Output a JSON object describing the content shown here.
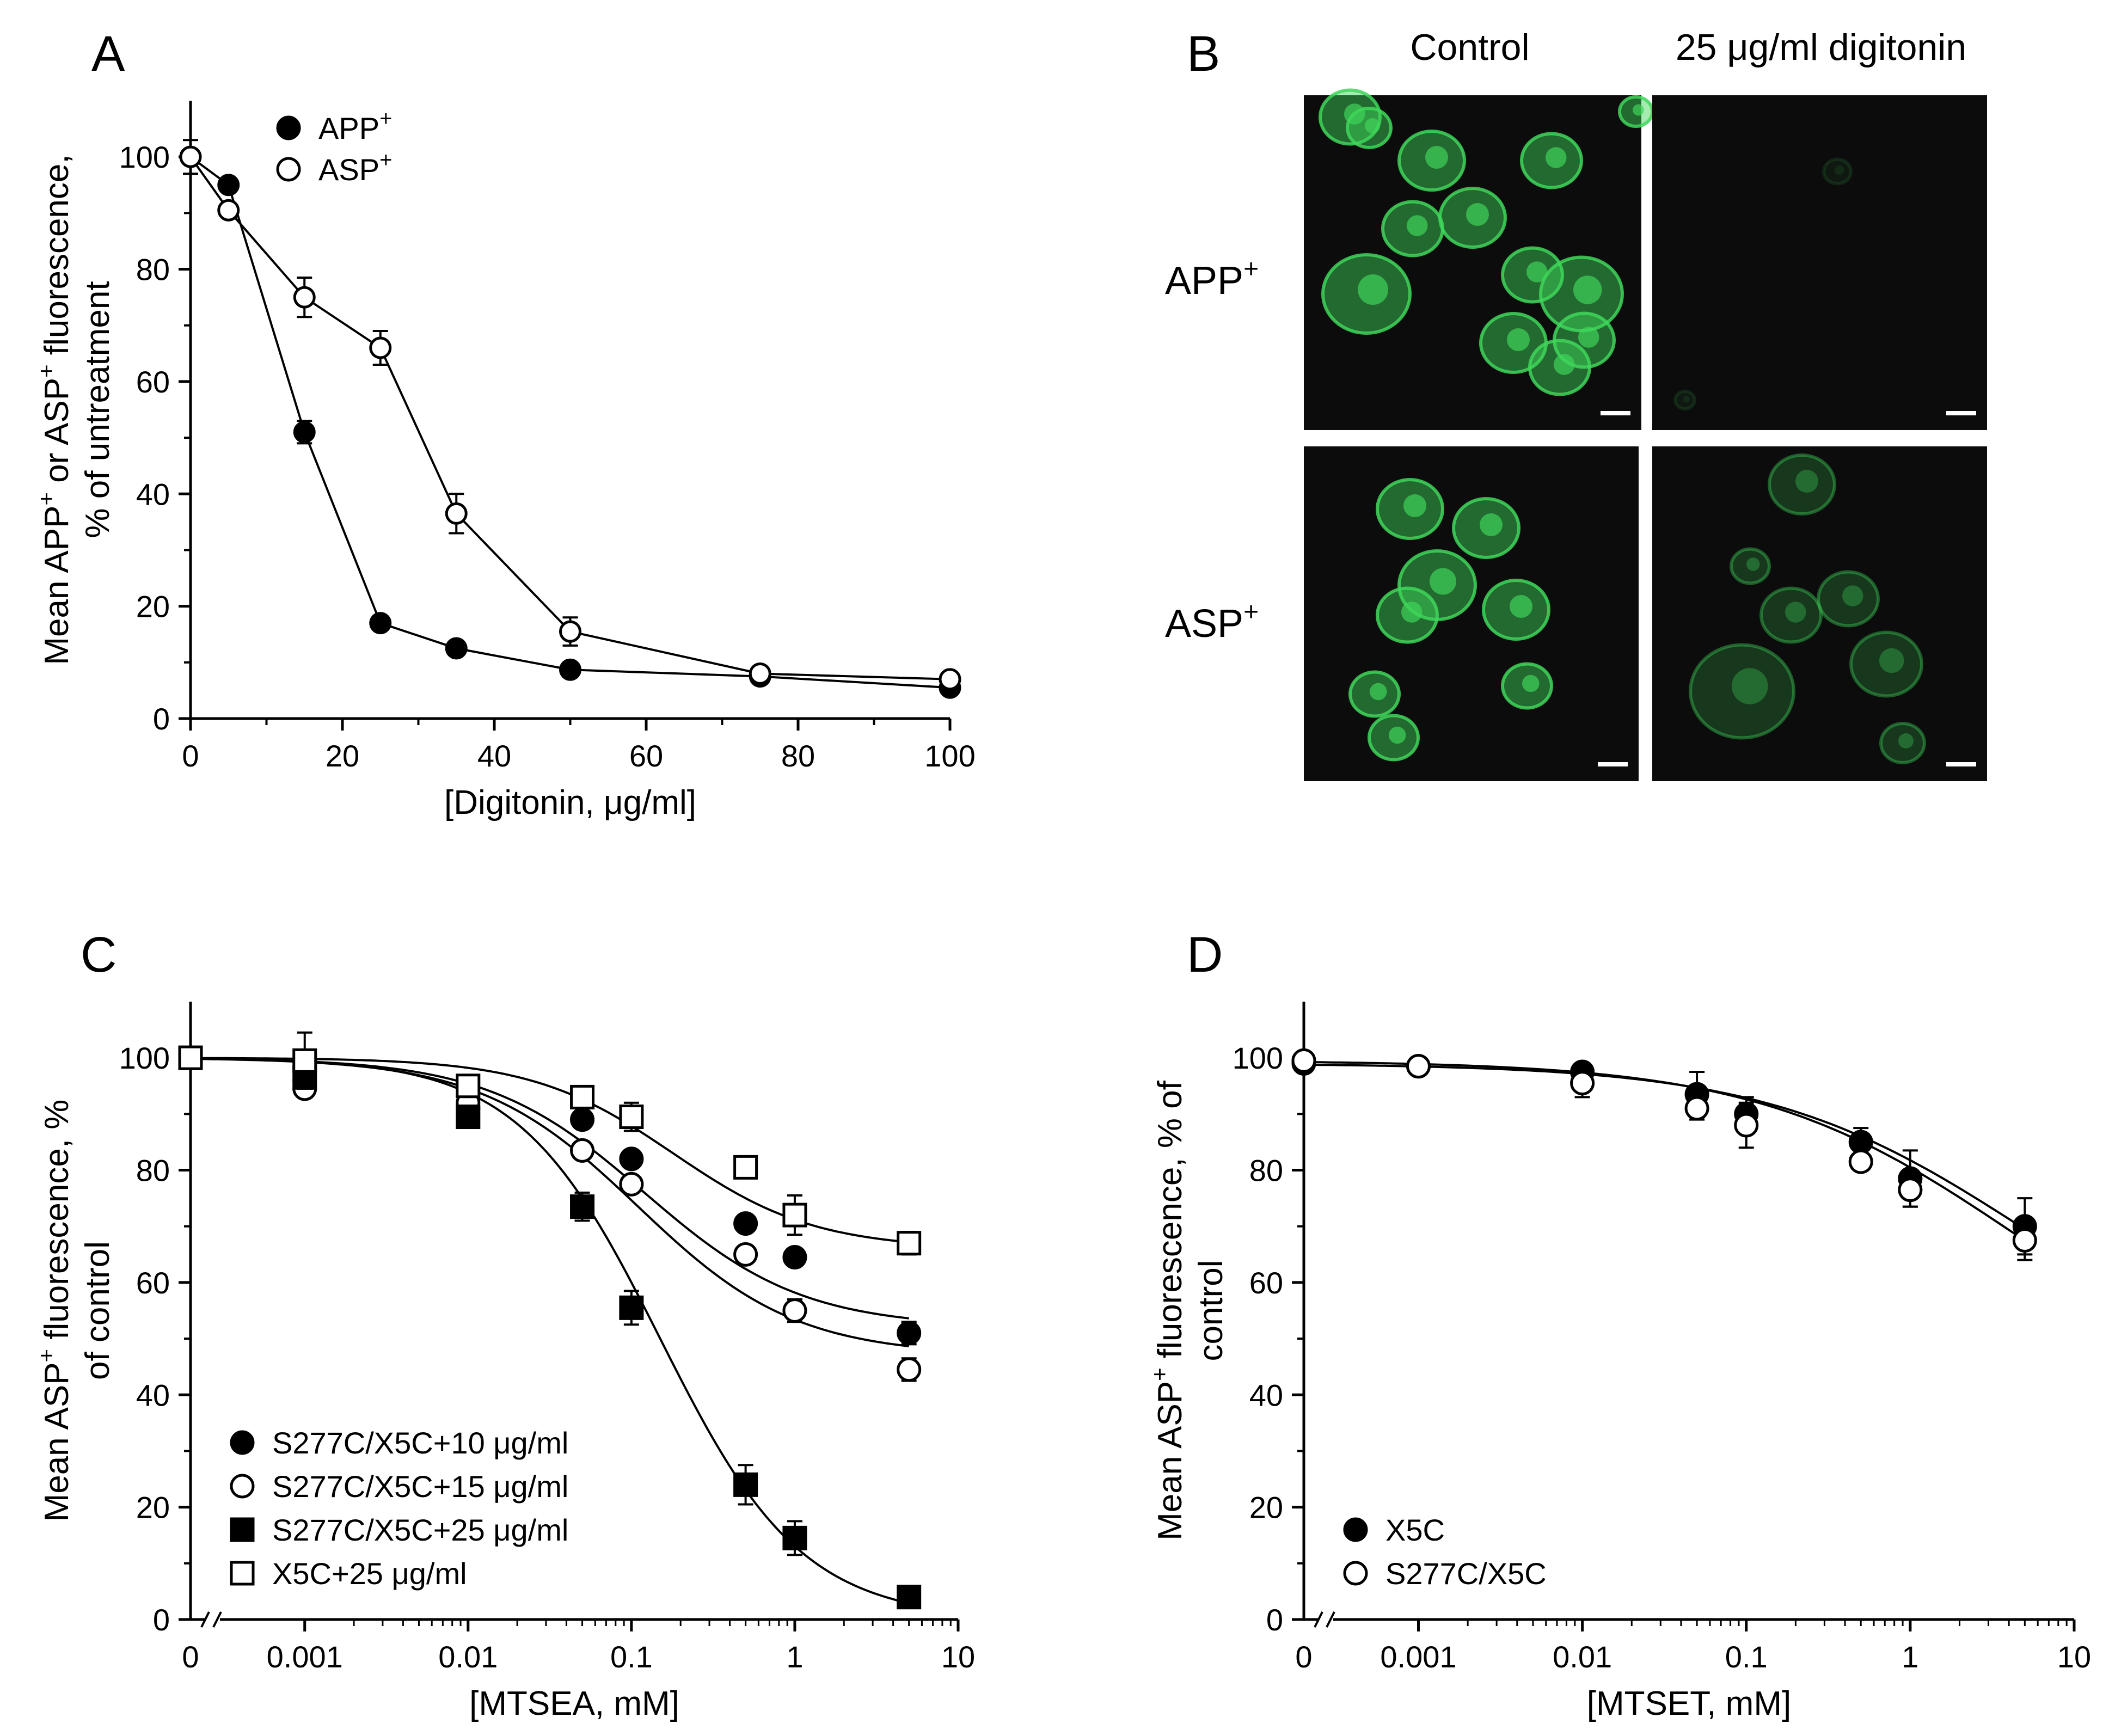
{
  "panels": {
    "A": {
      "letter": "A"
    },
    "B": {
      "letter": "B"
    },
    "C": {
      "letter": "C"
    },
    "D": {
      "letter": "D"
    }
  },
  "micrographs": {
    "column_headers": [
      "Control",
      "25 μg/ml digitonin"
    ],
    "row_labels": [
      {
        "base": "APP",
        "sup": "+"
      },
      {
        "base": "ASP",
        "sup": "+"
      }
    ],
    "colors": {
      "background": "#0c0c0c",
      "cells": "#3fd65a"
    }
  },
  "chart_data": [
    {
      "id": "A",
      "type": "line",
      "xlabel": "[Digitonin, μg/ml]",
      "ylabel_line1_parts": [
        "Mean APP",
        "+",
        " or ASP",
        "+",
        " fluorescence,"
      ],
      "ylabel_line2": "% of  untreatment",
      "xlim": [
        0,
        100
      ],
      "ylim": [
        0,
        110
      ],
      "xticks": [
        0,
        20,
        40,
        60,
        80,
        100
      ],
      "yticks": [
        0,
        20,
        40,
        60,
        80,
        100
      ],
      "legend_position": "top-left",
      "series": [
        {
          "name": "APP",
          "name_sup": "+",
          "marker": "circle-filled",
          "x": [
            0,
            5,
            15,
            25,
            35,
            50,
            75,
            100
          ],
          "y": [
            100,
            95,
            51,
            17,
            12.5,
            8.7,
            7.5,
            5.5
          ],
          "err": [
            0,
            1,
            2,
            1,
            1,
            1,
            1,
            1
          ]
        },
        {
          "name": "ASP",
          "name_sup": "+",
          "marker": "circle-open",
          "x": [
            0,
            5,
            15,
            25,
            35,
            50,
            75,
            100
          ],
          "y": [
            100,
            90.5,
            75,
            66,
            36.5,
            15.5,
            8,
            7
          ],
          "err": [
            3,
            1,
            3.5,
            3,
            3.5,
            2.5,
            1,
            1
          ]
        }
      ]
    },
    {
      "id": "C",
      "type": "scatter",
      "xscale": "log",
      "xlabel": "[MTSEA, mM]",
      "ylabel_line1_parts": [
        "Mean ASP",
        "+",
        " fluorescence, %"
      ],
      "ylabel_line2": "of control",
      "xlim": [
        0.0002,
        10
      ],
      "ylim": [
        0,
        110
      ],
      "xticks": [
        0.001,
        0.01,
        0.1,
        1,
        10
      ],
      "xtick_labels": [
        "0.001",
        "0.01",
        "0.1",
        "1",
        "10"
      ],
      "zero_label": "0",
      "yticks": [
        0,
        20,
        40,
        60,
        80,
        100
      ],
      "legend_position": "bottom-left",
      "series": [
        {
          "name": "S277C/X5C+10 μg/ml",
          "marker": "circle-filled",
          "x": [
            0.001,
            0.01,
            0.05,
            0.1,
            0.5,
            1,
            5
          ],
          "y": [
            96,
            91,
            89,
            82,
            70.5,
            64.5,
            51
          ],
          "err": [
            1.5,
            1.5,
            1.5,
            1.5,
            1.5,
            1.5,
            2
          ],
          "y0": 100,
          "fit": {
            "ic50": 0.12,
            "bottom": 52,
            "hill": 0.9
          }
        },
        {
          "name": "S277C/X5C+15 μg/ml",
          "marker": "circle-open",
          "x": [
            0.001,
            0.01,
            0.05,
            0.1,
            0.5,
            1,
            5
          ],
          "y": [
            94.5,
            92,
            83.5,
            77.5,
            65,
            55,
            44.5
          ],
          "err": [
            1.5,
            1.5,
            1.5,
            1.5,
            1.5,
            2,
            2
          ],
          "y0": 100,
          "fit": {
            "ic50": 0.11,
            "bottom": 47,
            "hill": 0.9
          }
        },
        {
          "name": "S277C/X5C+25 μg/ml",
          "marker": "square-filled",
          "x": [
            0.001,
            0.01,
            0.05,
            0.1,
            0.5,
            1,
            5
          ],
          "y": [
            96.5,
            89.5,
            73.5,
            55.5,
            24,
            14.5,
            4
          ],
          "err": [
            1.5,
            1.5,
            2.5,
            3,
            3.5,
            3,
            1
          ],
          "y0": 100,
          "fit": {
            "ic50": 0.15,
            "bottom": 0,
            "hill": 1.0
          }
        },
        {
          "name": "X5C+25 μg/ml",
          "marker": "square-open",
          "x": [
            0.001,
            0.01,
            0.05,
            0.1,
            0.5,
            1,
            5
          ],
          "y": [
            99.5,
            95,
            93,
            89.5,
            80.5,
            72,
            67
          ],
          "err": [
            5,
            1.5,
            1.5,
            2.5,
            1,
            3.5,
            2
          ],
          "y0": 100,
          "fit": {
            "ic50": 0.18,
            "bottom": 66,
            "hill": 1.0
          }
        }
      ]
    },
    {
      "id": "D",
      "type": "scatter",
      "xscale": "log",
      "xlabel": "[MTSET, mM]",
      "ylabel_line1_parts": [
        "Mean ASP",
        "+",
        " fluorescence, % of"
      ],
      "ylabel_line2": "control",
      "xlim": [
        0.0002,
        10
      ],
      "ylim": [
        0,
        110
      ],
      "xticks": [
        0.001,
        0.01,
        0.1,
        1,
        10
      ],
      "xtick_labels": [
        "0.001",
        "0.01",
        "0.1",
        "1",
        "10"
      ],
      "zero_label": "0",
      "yticks": [
        0,
        20,
        40,
        60,
        80,
        100
      ],
      "legend_position": "bottom-left",
      "series": [
        {
          "name": "X5C",
          "marker": "circle-filled",
          "x": [
            0.001,
            0.01,
            0.05,
            0.1,
            0.5,
            1,
            5
          ],
          "y": [
            98.5,
            97.5,
            93.5,
            90,
            85,
            78.5,
            70
          ],
          "err": [
            1.5,
            1.5,
            4,
            3,
            2.5,
            5,
            5
          ],
          "y0": 99,
          "fit": {
            "ic50": 5,
            "bottom": 40,
            "hill": 0.55
          }
        },
        {
          "name": "S277C/X5C",
          "marker": "circle-open",
          "x": [
            0.001,
            0.01,
            0.05,
            0.1,
            0.5,
            1,
            5
          ],
          "y": [
            98.5,
            95.5,
            91,
            88,
            81.5,
            76.5,
            67.5
          ],
          "err": [
            1.5,
            2.5,
            2,
            4,
            1.5,
            3,
            3.5
          ],
          "y0": 99.5,
          "fit": {
            "ic50": 4.3,
            "bottom": 38,
            "hill": 0.55
          }
        }
      ]
    }
  ]
}
